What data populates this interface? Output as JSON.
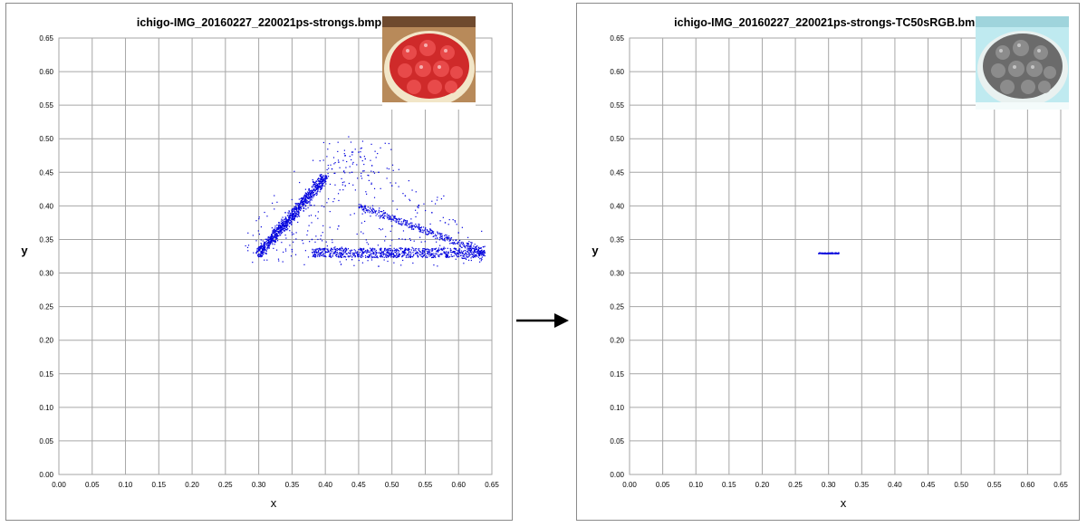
{
  "chart_data": [
    {
      "type": "scatter",
      "title": "ichigo-IMG_20160227_220021ps-strongs.bmp",
      "xlabel": "x",
      "ylabel": "y",
      "xlim": [
        0,
        0.65
      ],
      "ylim": [
        0,
        0.65
      ],
      "xticks": [
        "0.00",
        "0.05",
        "0.10",
        "0.15",
        "0.20",
        "0.25",
        "0.30",
        "0.35",
        "0.40",
        "0.45",
        "0.50",
        "0.55",
        "0.60",
        "0.65"
      ],
      "yticks": [
        "0.00",
        "0.05",
        "0.10",
        "0.15",
        "0.20",
        "0.25",
        "0.30",
        "0.35",
        "0.40",
        "0.45",
        "0.50",
        "0.55",
        "0.60",
        "0.65"
      ],
      "grid": true,
      "marker_color": "#0000dd",
      "thumbnail": "strawberry-tart-photo-color",
      "points": [
        [
          0.305,
          0.33
        ],
        [
          0.31,
          0.335
        ],
        [
          0.315,
          0.34
        ],
        [
          0.32,
          0.35
        ],
        [
          0.33,
          0.36
        ],
        [
          0.34,
          0.37
        ],
        [
          0.35,
          0.38
        ],
        [
          0.36,
          0.39
        ],
        [
          0.37,
          0.405
        ],
        [
          0.38,
          0.415
        ],
        [
          0.39,
          0.43
        ],
        [
          0.4,
          0.445
        ],
        [
          0.41,
          0.455
        ],
        [
          0.42,
          0.465
        ],
        [
          0.43,
          0.475
        ],
        [
          0.44,
          0.48
        ],
        [
          0.45,
          0.48
        ],
        [
          0.46,
          0.47
        ],
        [
          0.47,
          0.46
        ],
        [
          0.48,
          0.45
        ],
        [
          0.5,
          0.43
        ],
        [
          0.52,
          0.415
        ],
        [
          0.54,
          0.4
        ],
        [
          0.56,
          0.39
        ],
        [
          0.58,
          0.375
        ],
        [
          0.6,
          0.36
        ],
        [
          0.62,
          0.345
        ],
        [
          0.635,
          0.33
        ],
        [
          0.6,
          0.33
        ],
        [
          0.55,
          0.335
        ],
        [
          0.5,
          0.33
        ],
        [
          0.45,
          0.335
        ],
        [
          0.4,
          0.33
        ],
        [
          0.35,
          0.335
        ],
        [
          0.48,
          0.31
        ],
        [
          0.44,
          0.32
        ],
        [
          0.52,
          0.35
        ],
        [
          0.42,
          0.37
        ],
        [
          0.38,
          0.35
        ],
        [
          0.46,
          0.39
        ],
        [
          0.5,
          0.37
        ],
        [
          0.56,
          0.36
        ],
        [
          0.36,
          0.4
        ],
        [
          0.34,
          0.39
        ],
        [
          0.33,
          0.375
        ],
        [
          0.44,
          0.45
        ],
        [
          0.43,
          0.43
        ]
      ]
    },
    {
      "type": "scatter",
      "title": "ichigo-IMG_20160227_220021ps-strongs-TC50sRGB.bmp",
      "xlabel": "x",
      "ylabel": "y",
      "xlim": [
        0,
        0.65
      ],
      "ylim": [
        0,
        0.65
      ],
      "xticks": [
        "0.00",
        "0.05",
        "0.10",
        "0.15",
        "0.20",
        "0.25",
        "0.30",
        "0.35",
        "0.40",
        "0.45",
        "0.50",
        "0.55",
        "0.60",
        "0.65"
      ],
      "yticks": [
        "0.00",
        "0.05",
        "0.10",
        "0.15",
        "0.20",
        "0.25",
        "0.30",
        "0.35",
        "0.40",
        "0.45",
        "0.50",
        "0.55",
        "0.60",
        "0.65"
      ],
      "grid": true,
      "marker_color": "#0000dd",
      "thumbnail": "strawberry-tart-photo-grayscale",
      "points": [
        [
          0.285,
          0.329
        ],
        [
          0.29,
          0.329
        ],
        [
          0.295,
          0.329
        ],
        [
          0.3,
          0.329
        ],
        [
          0.305,
          0.33
        ],
        [
          0.31,
          0.33
        ],
        [
          0.315,
          0.33
        ]
      ]
    }
  ],
  "arrow_icon": "right-arrow-icon"
}
